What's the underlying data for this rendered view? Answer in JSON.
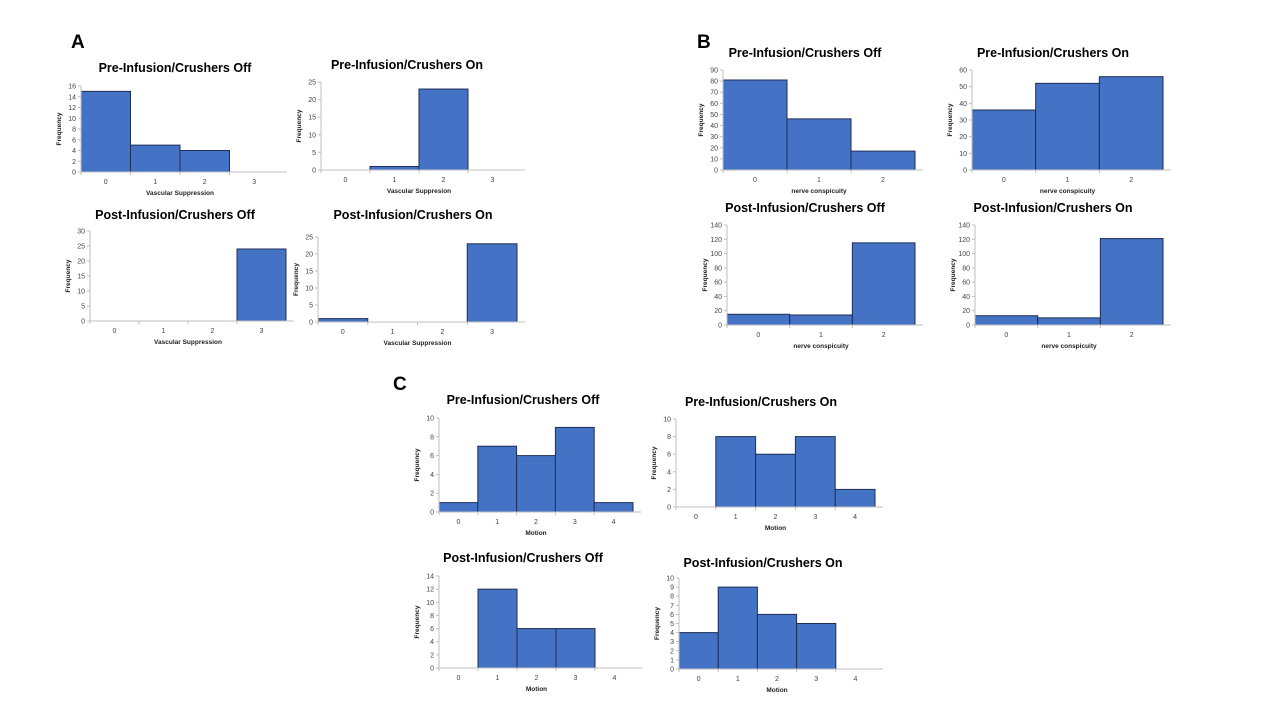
{
  "panels": [
    "A",
    "B",
    "C"
  ],
  "style": {
    "bar_fill": "#4472C4",
    "bar_stroke": "#1F2F55",
    "axis": "#BFBFBF"
  },
  "chart_data": [
    {
      "panel": "A",
      "type": "bar",
      "title": "Pre-Infusion/Crushers Off",
      "xlabel": "Vascular Suppression",
      "ylabel": "Frequency",
      "categories": [
        "0",
        "1",
        "2",
        "3"
      ],
      "values": [
        15,
        5,
        4,
        0
      ],
      "ylim": [
        0,
        16
      ],
      "ytick_step": 2,
      "grid": false
    },
    {
      "panel": "A",
      "type": "bar",
      "title": "Pre-Infusion/Crushers On",
      "xlabel": "Vascular Suppresion",
      "ylabel": "Frequency",
      "categories": [
        "0",
        "1",
        "2",
        "3"
      ],
      "values": [
        0,
        1,
        23,
        0
      ],
      "ylim": [
        0,
        25
      ],
      "ytick_step": 5,
      "grid": false
    },
    {
      "panel": "A",
      "type": "bar",
      "title": "Post-Infusion/Crushers Off",
      "xlabel": "Vascular Suppression",
      "ylabel": "Frequency",
      "categories": [
        "0",
        "1",
        "2",
        "3"
      ],
      "values": [
        0,
        0,
        0,
        24
      ],
      "ylim": [
        0,
        30
      ],
      "ytick_step": 5,
      "grid": false
    },
    {
      "panel": "A",
      "type": "bar",
      "title": "Post-Infusion/Crushers On",
      "xlabel": "Vascular Suppression",
      "ylabel": "Frequency",
      "categories": [
        "0",
        "1",
        "2",
        "3"
      ],
      "values": [
        1,
        0,
        0,
        23
      ],
      "ylim": [
        0,
        25
      ],
      "ytick_step": 5,
      "grid": false
    },
    {
      "panel": "B",
      "type": "bar",
      "title": "Pre-Infusion/Crushers Off",
      "xlabel": "nerve conspicuity",
      "ylabel": "Frequency",
      "categories": [
        "0",
        "1",
        "2"
      ],
      "values": [
        81,
        46,
        17
      ],
      "ylim": [
        0,
        90
      ],
      "ytick_step": 10,
      "grid": false
    },
    {
      "panel": "B",
      "type": "bar",
      "title": "Pre-Infusion/Crushers On",
      "xlabel": "nerve conspicuity",
      "ylabel": "Frequency",
      "categories": [
        "0",
        "1",
        "2"
      ],
      "values": [
        36,
        52,
        56
      ],
      "ylim": [
        0,
        60
      ],
      "ytick_step": 10,
      "grid": false
    },
    {
      "panel": "B",
      "type": "bar",
      "title": "Post-Infusion/Crushers Off",
      "xlabel": "nerve conspicuity",
      "ylabel": "Frequency",
      "categories": [
        "0",
        "1",
        "2"
      ],
      "values": [
        15,
        14,
        115
      ],
      "ylim": [
        0,
        140
      ],
      "ytick_step": 20,
      "grid": false
    },
    {
      "panel": "B",
      "type": "bar",
      "title": "Post-Infusion/Crushers On",
      "xlabel": "nerve conspicuity",
      "ylabel": "Frequency",
      "categories": [
        "0",
        "1",
        "2"
      ],
      "values": [
        13,
        10,
        121
      ],
      "ylim": [
        0,
        140
      ],
      "ytick_step": 20,
      "grid": false
    },
    {
      "panel": "C",
      "type": "bar",
      "title": "Pre-Infusion/Crushers Off",
      "xlabel": "Motion",
      "ylabel": "Frequency",
      "categories": [
        "0",
        "1",
        "2",
        "3",
        "4"
      ],
      "values": [
        1,
        7,
        6,
        9,
        1
      ],
      "ylim": [
        0,
        10
      ],
      "ytick_step": 2,
      "grid": false
    },
    {
      "panel": "C",
      "type": "bar",
      "title": "Pre-Infusion/Crushers On",
      "xlabel": "Motion",
      "ylabel": "Frequency",
      "categories": [
        "0",
        "1",
        "2",
        "3",
        "4"
      ],
      "values": [
        0,
        8,
        6,
        8,
        2
      ],
      "ylim": [
        0,
        10
      ],
      "ytick_step": 2,
      "grid": false
    },
    {
      "panel": "C",
      "type": "bar",
      "title": "Post-Infusion/Crushers Off",
      "xlabel": "Motion",
      "ylabel": "Frequency",
      "categories": [
        "0",
        "1",
        "2",
        "3",
        "4"
      ],
      "values": [
        0,
        12,
        6,
        6,
        0
      ],
      "ylim": [
        0,
        14
      ],
      "ytick_step": 2,
      "grid": false
    },
    {
      "panel": "C",
      "type": "bar",
      "title": "Post-Infusion/Crushers On",
      "xlabel": "Motion",
      "ylabel": "Frequency",
      "categories": [
        "0",
        "1",
        "2",
        "3",
        "4"
      ],
      "values": [
        4,
        9,
        6,
        5,
        0
      ],
      "ylim": [
        0,
        10
      ],
      "ytick_step": 1,
      "grid": false
    }
  ]
}
